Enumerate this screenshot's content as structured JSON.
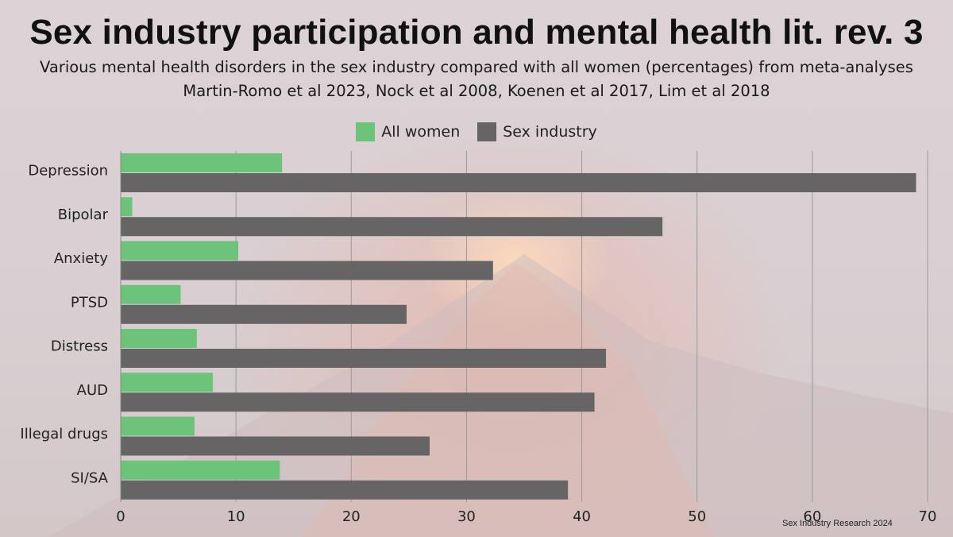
{
  "title": "Sex industry participation and mental health lit. rev. 3",
  "subtitle": "Various mental health disorders in the sex industry compared with all women (percentages) from meta-analyses",
  "sources": "Martin-Romo et al 2023, Nock et al 2008, Koenen et al 2017, Lim et al 2018",
  "credit": "Sex Industry Research 2024",
  "colors": {
    "all_women": "#6cc47a",
    "sex_industry": "#666464"
  },
  "chart_data": {
    "type": "bar",
    "orientation": "horizontal",
    "categories": [
      "Depression",
      "Bipolar",
      "Anxiety",
      "PTSD",
      "Distress",
      "AUD",
      "Illegal drugs",
      "SI/SA"
    ],
    "series": [
      {
        "name": "All women",
        "values": [
          14,
          1,
          10.2,
          5.2,
          6.6,
          8,
          6.4,
          13.8
        ]
      },
      {
        "name": "Sex industry",
        "values": [
          69,
          47,
          32.3,
          24.8,
          42.1,
          41.1,
          26.8,
          38.8
        ]
      }
    ],
    "xlim": [
      0,
      70
    ],
    "xticks": [
      0,
      10,
      20,
      30,
      40,
      50,
      60,
      70
    ],
    "legend_position": "top-center",
    "grid": true
  }
}
